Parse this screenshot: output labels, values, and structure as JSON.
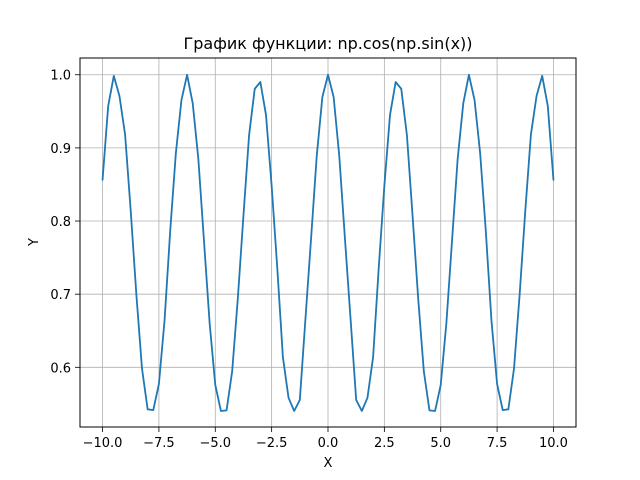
{
  "chart_data": {
    "type": "line",
    "title": "График функции: np.cos(np.sin(x))",
    "xlabel": "X",
    "ylabel": "Y",
    "xlim": [
      -11.0,
      11.0
    ],
    "ylim": [
      0.5184,
      1.0229
    ],
    "grid": true,
    "x_ticks": [
      -10.0,
      -7.5,
      -5.0,
      -2.5,
      0.0,
      2.5,
      5.0,
      7.5,
      10.0
    ],
    "x_tick_labels": [
      "−10.0",
      "−7.5",
      "−5.0",
      "−2.5",
      "0.0",
      "2.5",
      "5.0",
      "7.5",
      "10.0"
    ],
    "y_ticks": [
      0.6,
      0.7,
      0.8,
      0.9,
      1.0
    ],
    "y_tick_labels": [
      "0.6",
      "0.7",
      "0.8",
      "0.9",
      "1.0"
    ],
    "series": [
      {
        "color": "#1f77b4",
        "x": [
          -10.0,
          -9.75,
          -9.5,
          -9.25,
          -9.0,
          -8.75,
          -8.5,
          -8.25,
          -8.0,
          -7.75,
          -7.5,
          -7.25,
          -7.0,
          -6.75,
          -6.5,
          -6.25,
          -6.0,
          -5.75,
          -5.5,
          -5.25,
          -5.0,
          -4.75,
          -4.5,
          -4.25,
          -4.0,
          -3.75,
          -3.5,
          -3.25,
          -3.0,
          -2.75,
          -2.5,
          -2.25,
          -2.0,
          -1.75,
          -1.5,
          -1.25,
          -1.0,
          -0.75,
          -0.5,
          -0.25,
          0.0,
          0.25,
          0.5,
          0.75,
          1.0,
          1.25,
          1.5,
          1.75,
          2.0,
          2.25,
          2.5,
          2.75,
          3.0,
          3.25,
          3.5,
          3.75,
          4.0,
          4.25,
          4.5,
          4.75,
          5.0,
          5.25,
          5.5,
          5.75,
          6.0,
          6.25,
          6.5,
          6.75,
          7.0,
          7.25,
          7.5,
          7.75,
          8.0,
          8.25,
          8.5,
          8.75,
          9.0,
          9.25,
          9.5,
          9.75,
          10.0
        ],
        "y": [
          0.8563,
          0.9572,
          0.9985,
          0.9709,
          0.9183,
          0.8138,
          0.6994,
          0.5982,
          0.5426,
          0.5415,
          0.5773,
          0.6641,
          0.7859,
          0.8923,
          0.9654,
          0.9999,
          0.9609,
          0.8845,
          0.7726,
          0.6601,
          0.5761,
          0.5403,
          0.5411,
          0.5947,
          0.6941,
          0.8075,
          0.9175,
          0.9807,
          0.9901,
          0.9449,
          0.8483,
          0.7361,
          0.6137,
          0.5583,
          0.5403,
          0.5554,
          0.6664,
          0.7766,
          0.8889,
          0.9694,
          1.0,
          0.9694,
          0.8889,
          0.7766,
          0.6664,
          0.5554,
          0.5403,
          0.5583,
          0.6137,
          0.7361,
          0.8483,
          0.9449,
          0.9901,
          0.9807,
          0.9175,
          0.8075,
          0.6941,
          0.5947,
          0.5411,
          0.5403,
          0.5761,
          0.6601,
          0.7726,
          0.8845,
          0.9609,
          0.9999,
          0.9654,
          0.8923,
          0.7859,
          0.6641,
          0.5773,
          0.5415,
          0.5426,
          0.5982,
          0.6994,
          0.8138,
          0.9183,
          0.9709,
          0.9985,
          0.9572,
          0.8563
        ]
      }
    ]
  }
}
